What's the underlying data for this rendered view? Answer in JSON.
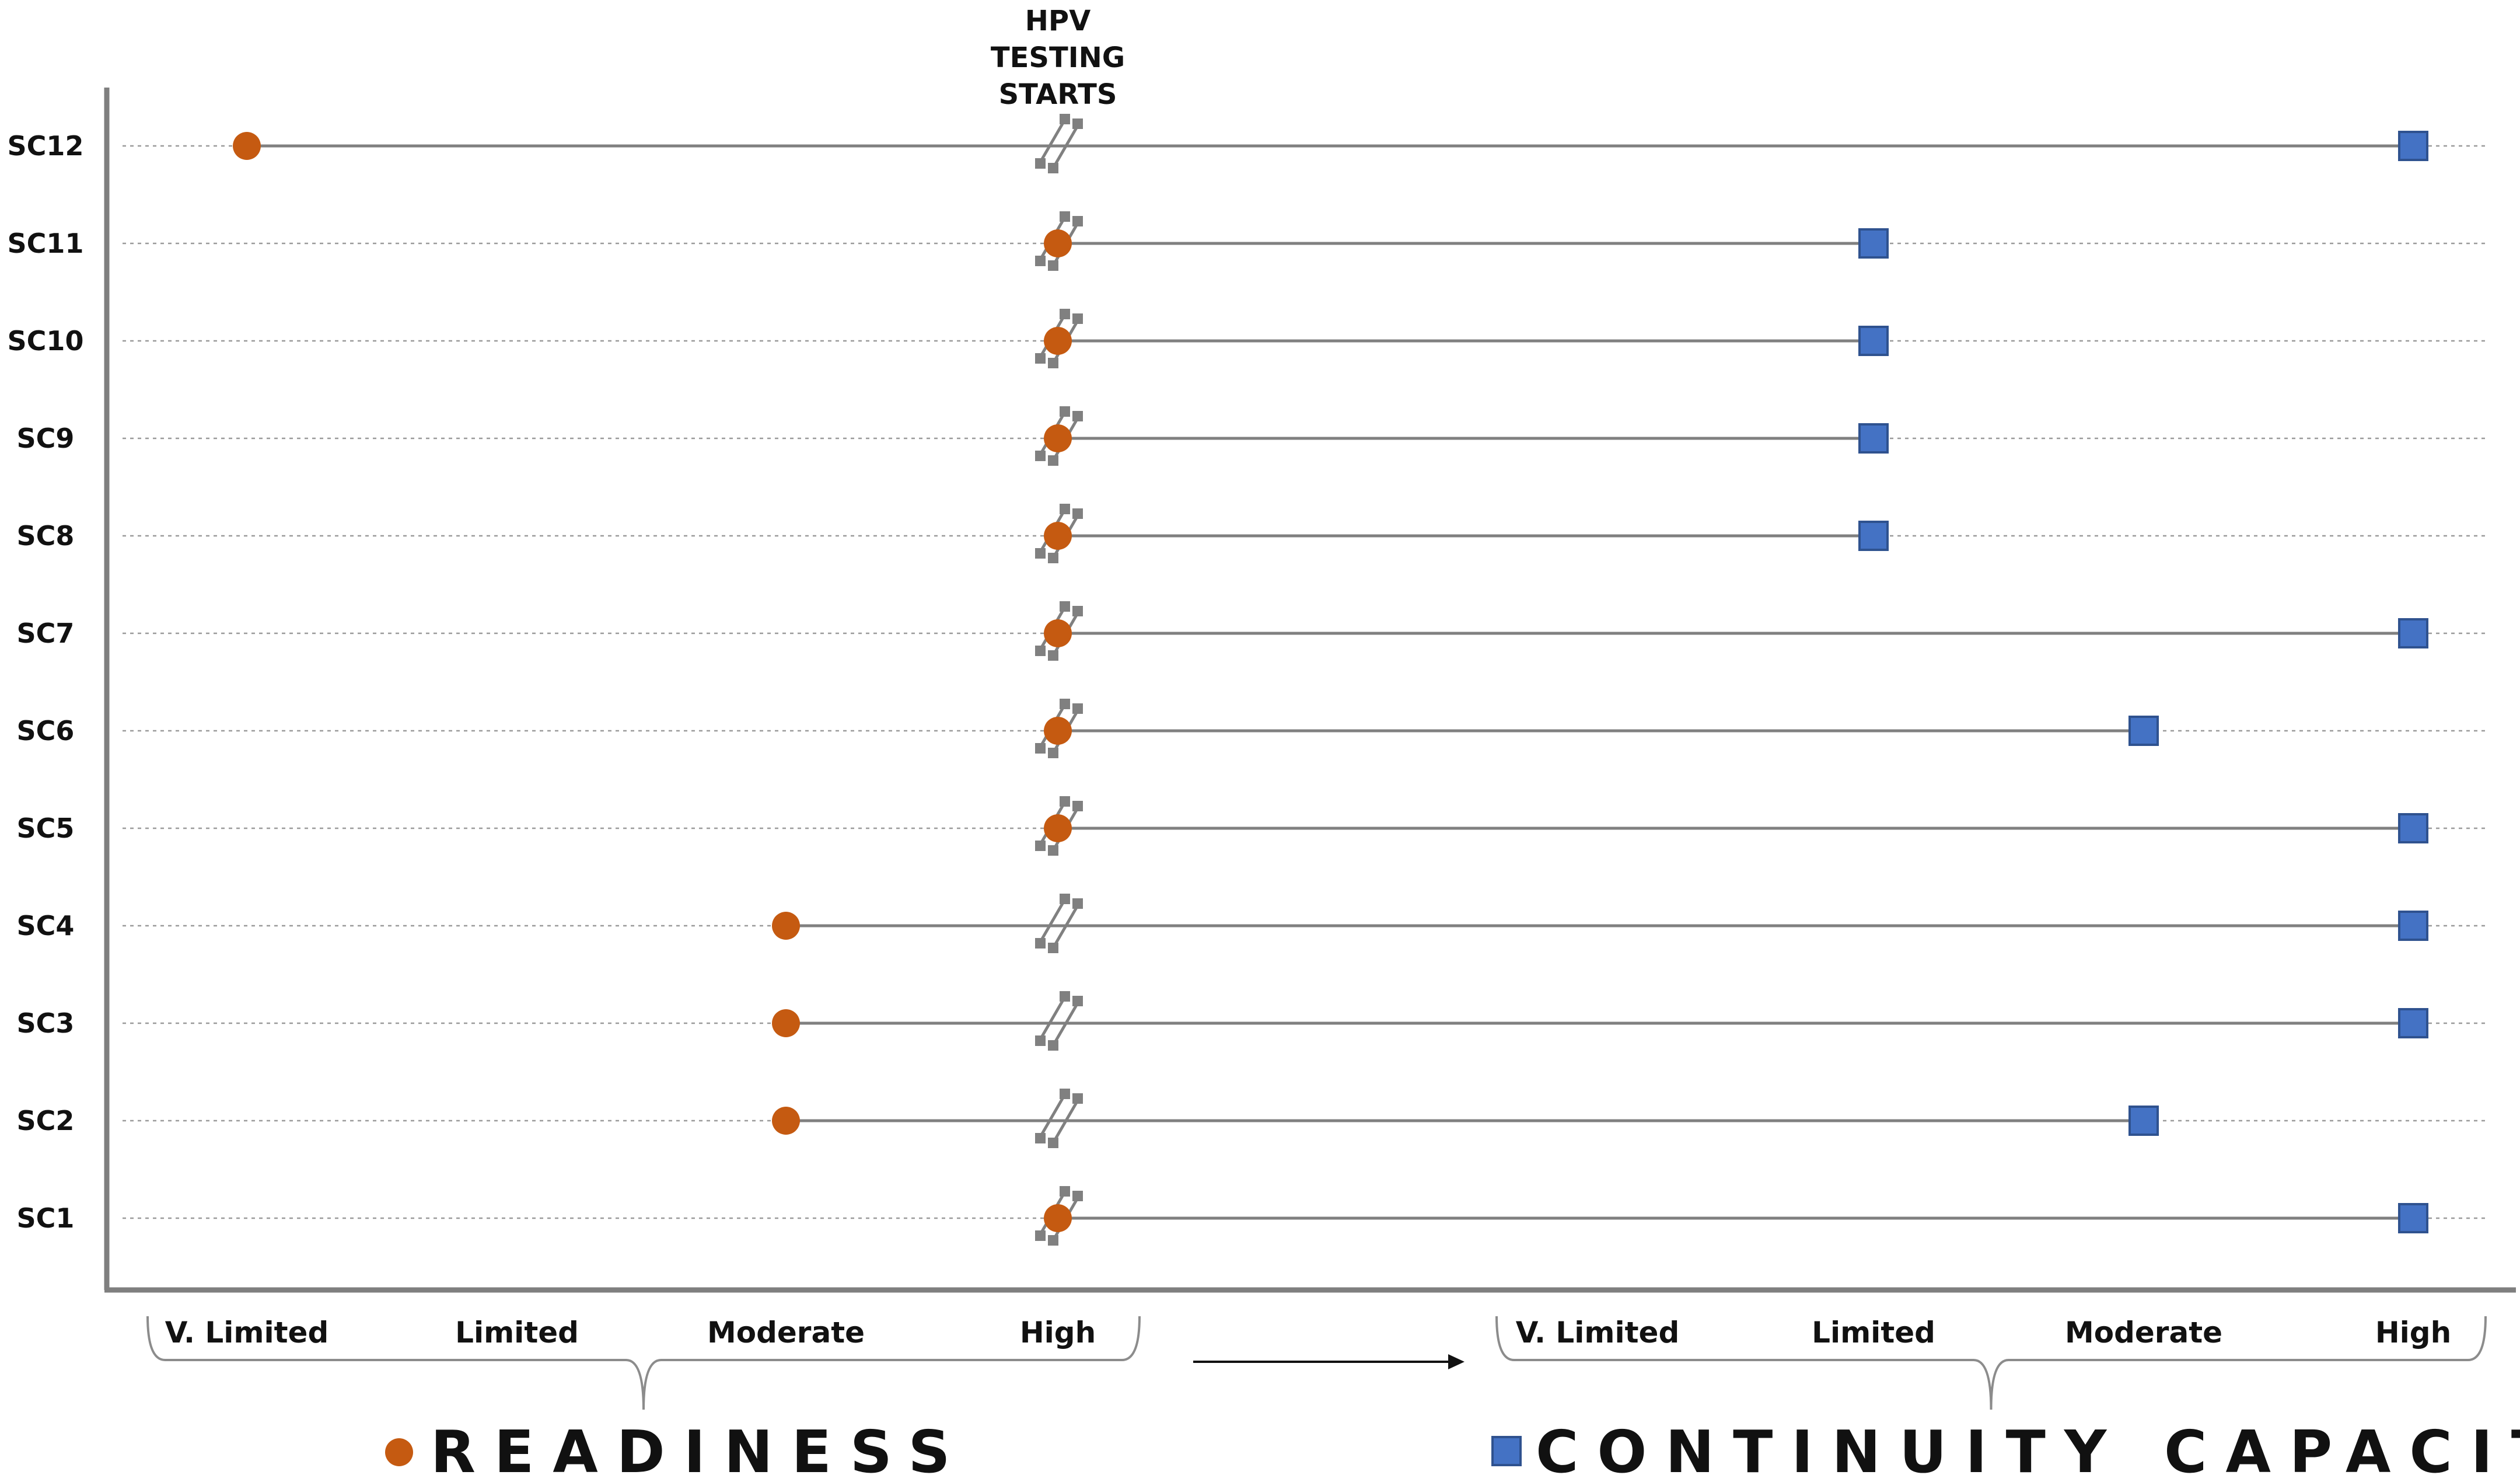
{
  "chart_data": {
    "type": "dumbbell",
    "hpv_marker": {
      "lines": [
        "HPV",
        "TESTING",
        "STARTS"
      ]
    },
    "rows": [
      {
        "label": "SC12",
        "readiness": "V. Limited",
        "continuity": "High",
        "readiness_at_start": false
      },
      {
        "label": "SC11",
        "readiness": "High",
        "continuity": "Limited",
        "readiness_at_start": true
      },
      {
        "label": "SC10",
        "readiness": "High",
        "continuity": "Limited",
        "readiness_at_start": true
      },
      {
        "label": "SC9",
        "readiness": "High",
        "continuity": "Limited",
        "readiness_at_start": true
      },
      {
        "label": "SC8",
        "readiness": "High",
        "continuity": "Limited",
        "readiness_at_start": true
      },
      {
        "label": "SC7",
        "readiness": "High",
        "continuity": "High",
        "readiness_at_start": true
      },
      {
        "label": "SC6",
        "readiness": "High",
        "continuity": "Moderate",
        "readiness_at_start": true
      },
      {
        "label": "SC5",
        "readiness": "High",
        "continuity": "High",
        "readiness_at_start": true
      },
      {
        "label": "SC4",
        "readiness": "Moderate",
        "continuity": "High",
        "readiness_at_start": false
      },
      {
        "label": "SC3",
        "readiness": "Moderate",
        "continuity": "High",
        "readiness_at_start": false
      },
      {
        "label": "SC2",
        "readiness": "Moderate",
        "continuity": "Moderate",
        "readiness_at_start": false
      },
      {
        "label": "SC1",
        "readiness": "High",
        "continuity": "High",
        "readiness_at_start": true
      }
    ],
    "readiness_axis": {
      "categories": [
        "V. Limited",
        "Limited",
        "Moderate",
        "High"
      ],
      "legend_label": "READINESS",
      "marker": "circle",
      "color": "#c55a11"
    },
    "continuity_axis": {
      "categories": [
        "V. Limited",
        "Limited",
        "Moderate",
        "High"
      ],
      "legend_label": "CONTINUITY CAPACITY",
      "marker": "square",
      "color": "#4472c4",
      "stroke": "#2f528f"
    },
    "colors": {
      "connector": "#808080",
      "gridline": "#9a9a9a",
      "axis": "#7f7f7f",
      "break_marker": "#808080"
    }
  }
}
